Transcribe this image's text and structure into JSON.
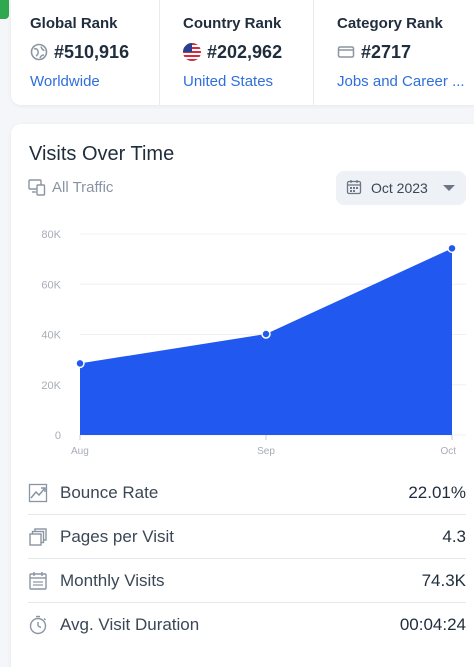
{
  "ranks": {
    "global": {
      "title": "Global Rank",
      "value": "#510,916",
      "link": "Worldwide",
      "icon": "globe-icon"
    },
    "country": {
      "title": "Country Rank",
      "value": "#202,962",
      "link": "United States",
      "icon": "us-flag-icon"
    },
    "category": {
      "title": "Category Rank",
      "value": "#2717",
      "link": "Jobs and Career ...",
      "icon": "folder-icon"
    }
  },
  "visits": {
    "title": "Visits Over Time",
    "traffic_filter": "All Traffic",
    "date_select": "Oct 2023"
  },
  "colors": {
    "accent": "#2158f0",
    "link": "#2f6fdd",
    "brand_green": "#2fa84f"
  },
  "chart_data": {
    "type": "area",
    "x": [
      "Aug",
      "Sep",
      "Oct"
    ],
    "series": [
      {
        "values": [
          28500,
          40200,
          74300
        ]
      }
    ],
    "ylim": [
      0,
      80000
    ],
    "y_ticks": [
      "0",
      "20K",
      "40K",
      "60K",
      "80K"
    ],
    "y_tick_values": [
      0,
      20000,
      40000,
      60000,
      80000
    ],
    "grid": true
  },
  "metrics": [
    {
      "label": "Bounce Rate",
      "value": "22.01%",
      "icon": "trend-icon"
    },
    {
      "label": "Pages per Visit",
      "value": "4.3",
      "icon": "pages-icon"
    },
    {
      "label": "Monthly Visits",
      "value": "74.3K",
      "icon": "calendar-icon"
    },
    {
      "label": "Avg. Visit Duration",
      "value": "00:04:24",
      "icon": "stopwatch-icon"
    }
  ]
}
